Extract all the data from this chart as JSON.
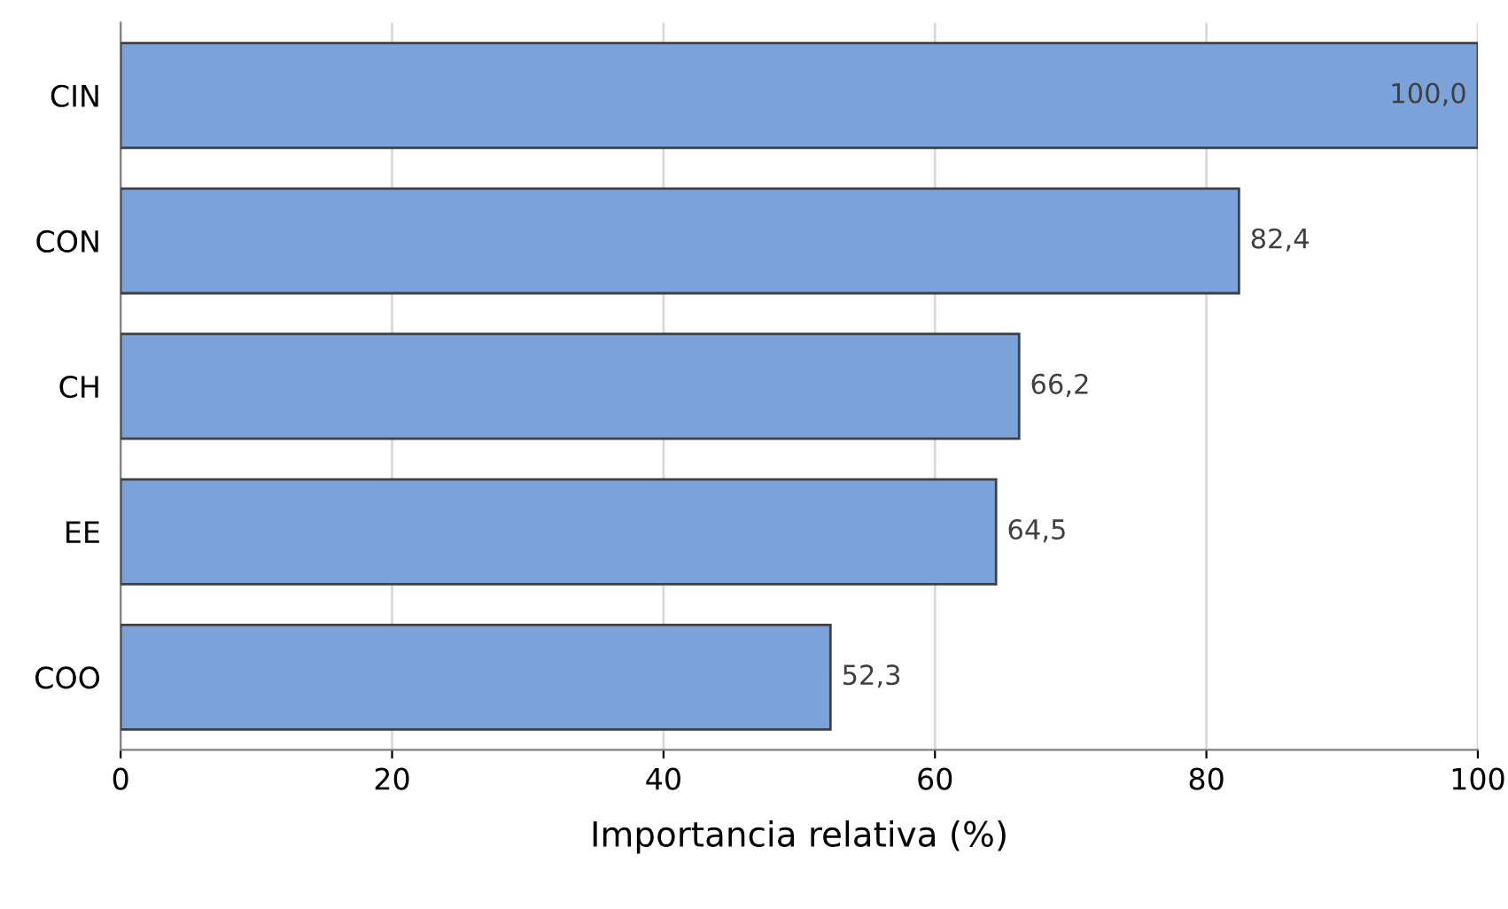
{
  "chart_data": {
    "type": "bar",
    "orientation": "horizontal",
    "xlabel": "Importancia relativa (%)",
    "categories": [
      "CIN",
      "CON",
      "CH",
      "EE",
      "COO"
    ],
    "values": [
      100.0,
      82.4,
      66.2,
      64.5,
      52.3
    ],
    "value_labels": [
      "100,0",
      "82,4",
      "66,2",
      "64,5",
      "52,3"
    ],
    "color": "#7ba3d9",
    "xlim": [
      0,
      100
    ],
    "xticks": [
      0,
      20,
      40,
      60,
      80,
      100
    ],
    "grid": "x"
  }
}
